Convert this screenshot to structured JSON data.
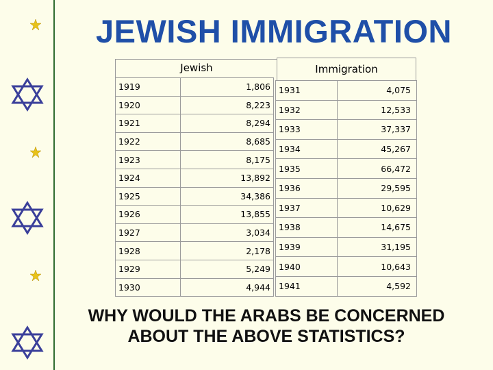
{
  "title": "JEWISH IMMIGRATION",
  "headers": {
    "left": "Jewish",
    "right": "Immigration"
  },
  "left_table": [
    {
      "year": "1919",
      "value": "1,806"
    },
    {
      "year": "1920",
      "value": "8,223"
    },
    {
      "year": "1921",
      "value": "8,294"
    },
    {
      "year": "1922",
      "value": "8,685"
    },
    {
      "year": "1923",
      "value": "8,175"
    },
    {
      "year": "1924",
      "value": "13,892"
    },
    {
      "year": "1925",
      "value": "34,386"
    },
    {
      "year": "1926",
      "value": "13,855"
    },
    {
      "year": "1927",
      "value": "3,034"
    },
    {
      "year": "1928",
      "value": "2,178"
    },
    {
      "year": "1929",
      "value": "5,249"
    },
    {
      "year": "1930",
      "value": "4,944"
    }
  ],
  "right_table": [
    {
      "year": "1931",
      "value": "4,075"
    },
    {
      "year": "1932",
      "value": "12,533"
    },
    {
      "year": "1933",
      "value": "37,337"
    },
    {
      "year": "1934",
      "value": "45,267"
    },
    {
      "year": "1935",
      "value": "66,472"
    },
    {
      "year": "1936",
      "value": "29,595"
    },
    {
      "year": "1937",
      "value": "10,629"
    },
    {
      "year": "1938",
      "value": "14,675"
    },
    {
      "year": "1939",
      "value": "31,195"
    },
    {
      "year": "1940",
      "value": "10,643"
    },
    {
      "year": "1941",
      "value": "4,592"
    }
  ],
  "question": {
    "line1": "WHY WOULD THE ARABS  BE CONCERNED",
    "line2": "ABOUT THE ABOVE STATISTICS?"
  },
  "colors": {
    "title": "#1f4fa8",
    "crescent": "#e8c21a",
    "star_of_david": "#3a3f9a",
    "sidebar_rule": "#2f6b2f"
  },
  "sidebar_symbols": [
    "crescent-star-icon",
    "star-of-david-icon",
    "crescent-star-icon",
    "star-of-david-icon",
    "crescent-star-icon",
    "star-of-david-icon"
  ]
}
